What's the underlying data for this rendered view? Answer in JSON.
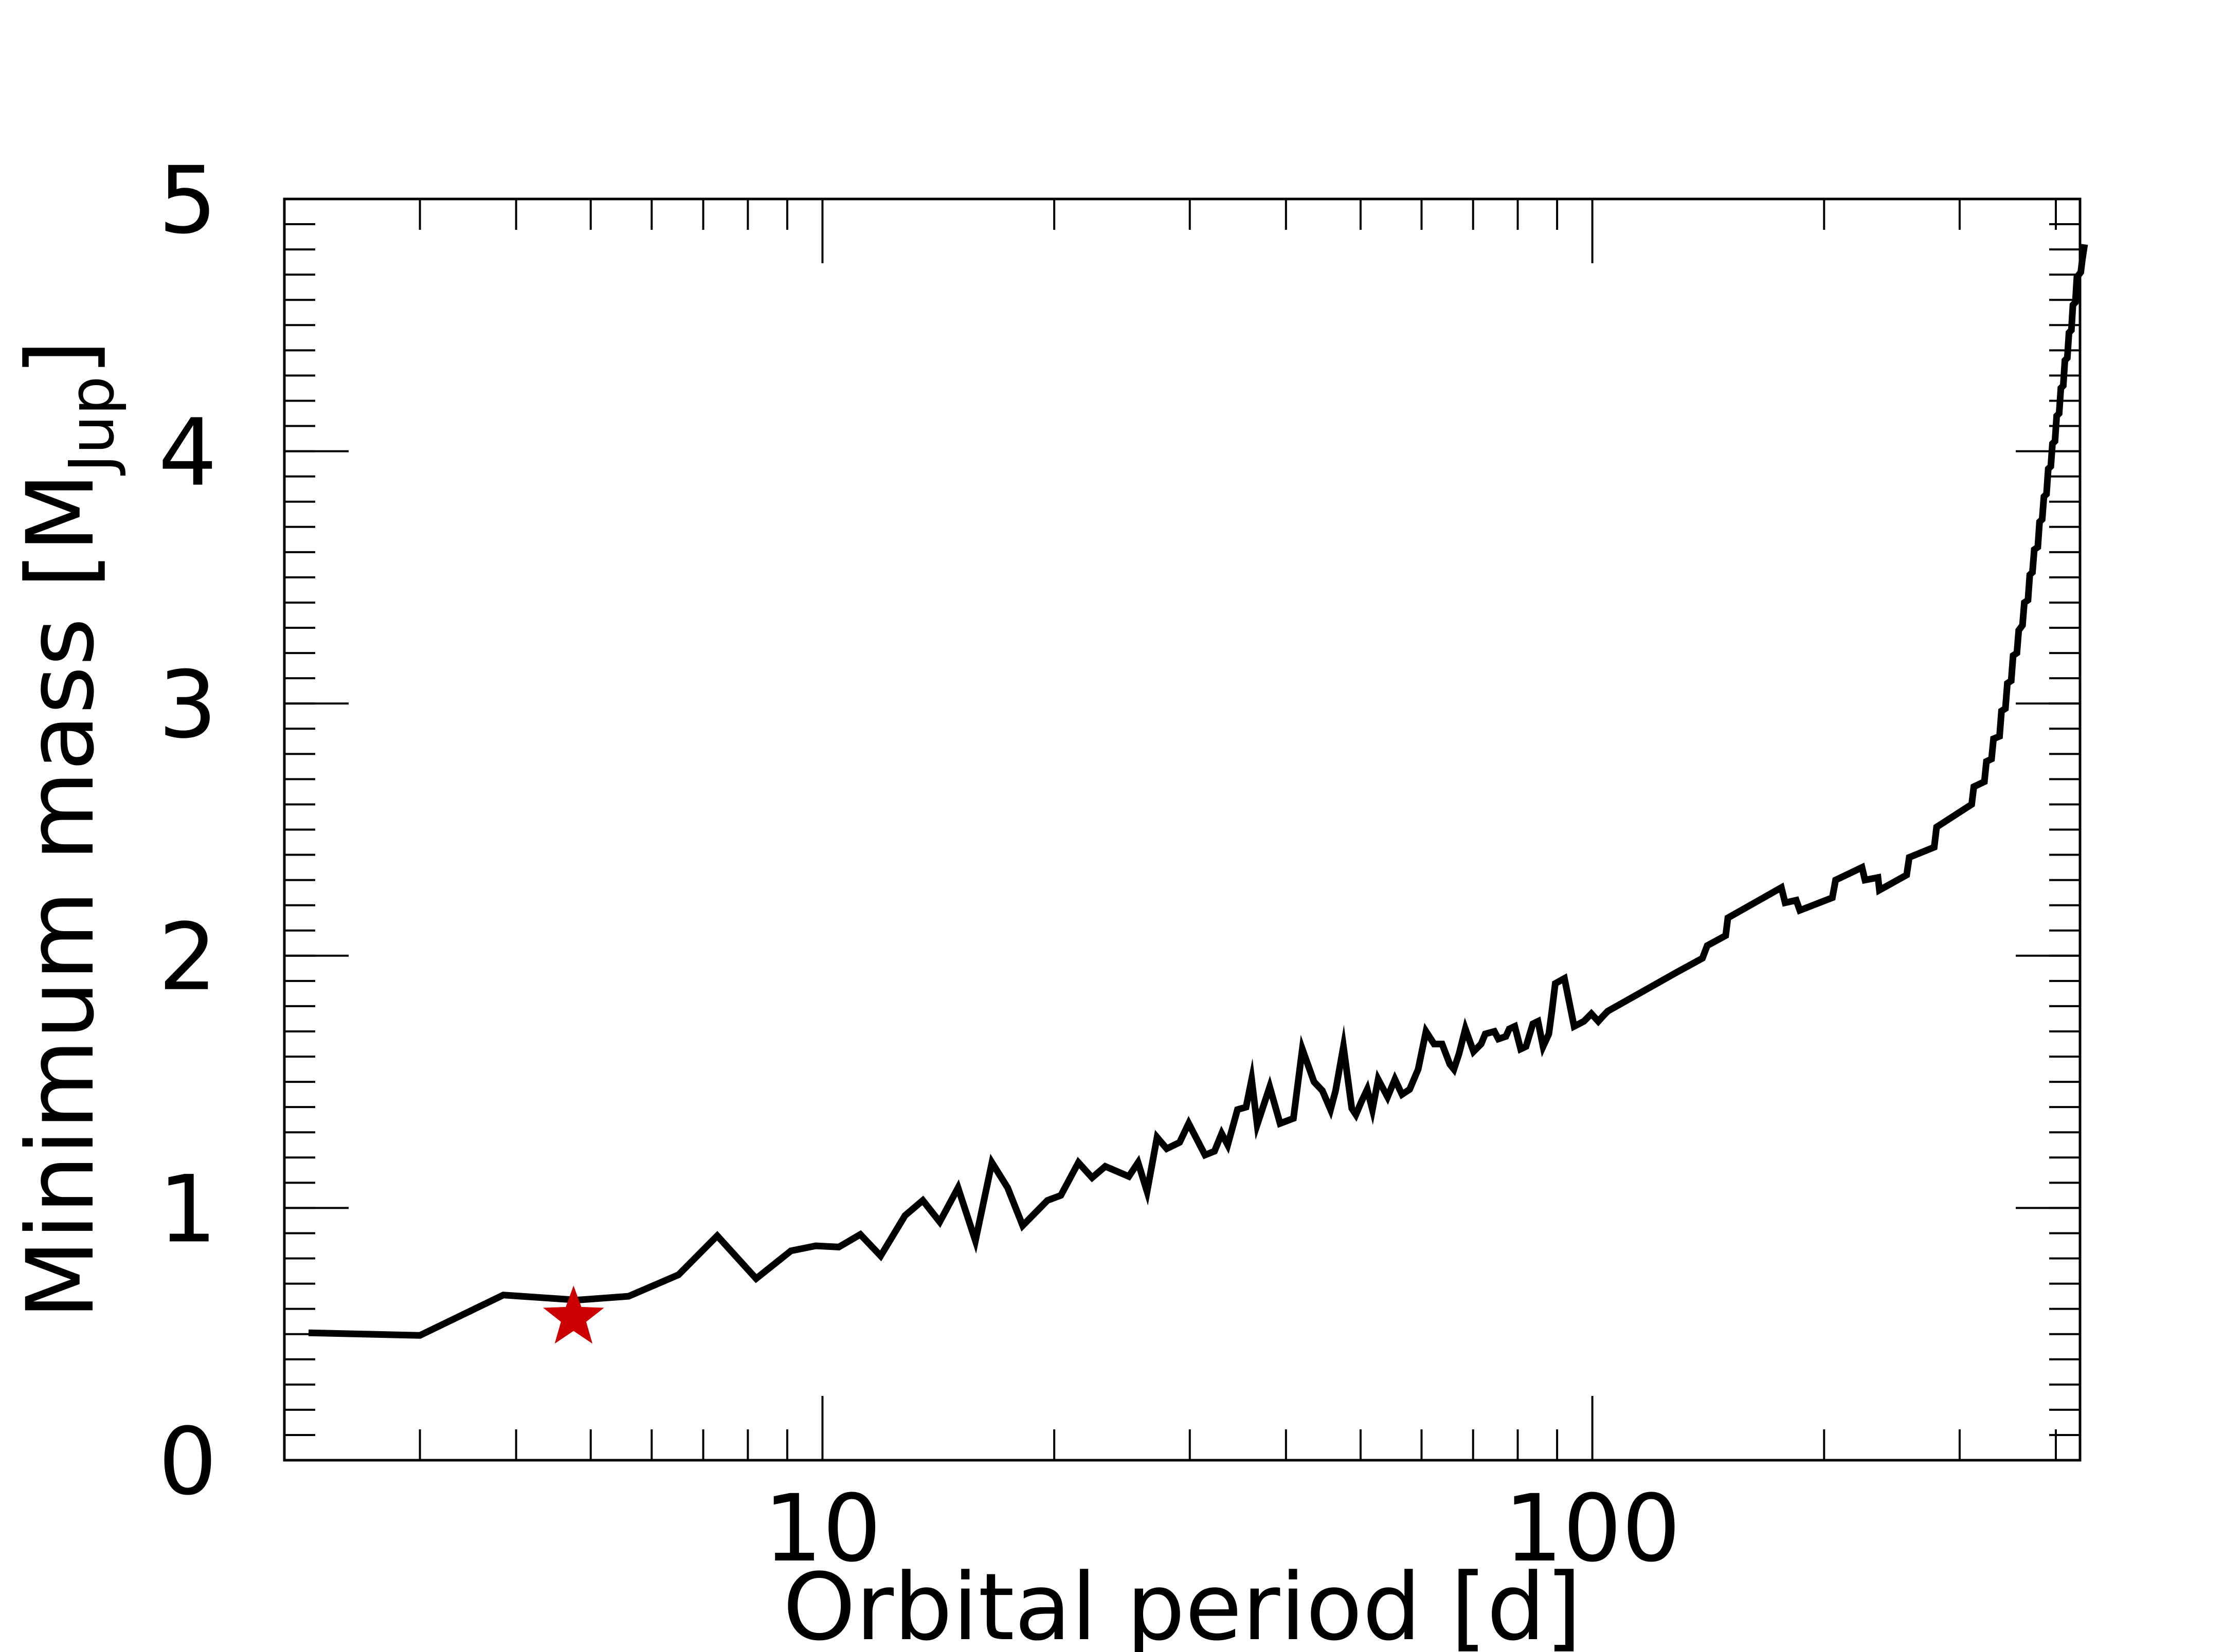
{
  "chart_data": {
    "type": "line",
    "title": "",
    "xlabel": "Orbital period [d]",
    "ylabel": {
      "prefix": "Minimum mass [M",
      "subscript": "Jup",
      "suffix": "]"
    },
    "xscale": "log",
    "yscale": "linear",
    "xlim": [
      2.0,
      430
    ],
    "ylim": [
      0,
      5
    ],
    "x_tick_labels": [
      {
        "value": 10,
        "label": "10"
      },
      {
        "value": 100,
        "label": "100"
      }
    ],
    "y_tick_labels": [
      {
        "value": 0,
        "label": "0"
      },
      {
        "value": 1,
        "label": "1"
      },
      {
        "value": 2,
        "label": "2"
      },
      {
        "value": 3,
        "label": "3"
      },
      {
        "value": 4,
        "label": "4"
      },
      {
        "value": 5,
        "label": "5"
      }
    ],
    "x_minor_ticks": [
      3,
      4,
      5,
      6,
      7,
      8,
      9,
      20,
      30,
      40,
      50,
      60,
      70,
      80,
      90,
      200,
      300,
      400
    ],
    "y_minor_step": 0.1,
    "grid": false,
    "colors": {
      "line": "#000000",
      "marker": "#cc0000"
    },
    "series": [
      {
        "color": "#000000",
        "points": [
          [
            2.15,
            0.505
          ],
          [
            3.0,
            0.495
          ],
          [
            3.85,
            0.655
          ],
          [
            4.8,
            0.635
          ],
          [
            5.6,
            0.65
          ],
          [
            6.5,
            0.735
          ],
          [
            7.3,
            0.89
          ],
          [
            8.2,
            0.72
          ],
          [
            9.1,
            0.83
          ],
          [
            9.8,
            0.85
          ],
          [
            10.5,
            0.845
          ],
          [
            11.2,
            0.895
          ],
          [
            11.9,
            0.81
          ],
          [
            12.8,
            0.97
          ],
          [
            13.5,
            1.03
          ],
          [
            14.2,
            0.945
          ],
          [
            15.0,
            1.08
          ],
          [
            15.8,
            0.87
          ],
          [
            16.6,
            1.18
          ],
          [
            17.4,
            1.08
          ],
          [
            18.2,
            0.93
          ],
          [
            19.6,
            1.03
          ],
          [
            20.4,
            1.05
          ],
          [
            21.5,
            1.18
          ],
          [
            22.4,
            1.12
          ],
          [
            23.3,
            1.165
          ],
          [
            25.0,
            1.125
          ],
          [
            25.7,
            1.18
          ],
          [
            26.4,
            1.065
          ],
          [
            27.2,
            1.28
          ],
          [
            28.0,
            1.235
          ],
          [
            29.1,
            1.26
          ],
          [
            29.9,
            1.335
          ],
          [
            31.4,
            1.21
          ],
          [
            32.3,
            1.225
          ],
          [
            33.0,
            1.295
          ],
          [
            33.6,
            1.25
          ],
          [
            34.6,
            1.39
          ],
          [
            35.5,
            1.4
          ],
          [
            36.1,
            1.51
          ],
          [
            36.7,
            1.33
          ],
          [
            38.1,
            1.48
          ],
          [
            39.3,
            1.335
          ],
          [
            40.9,
            1.355
          ],
          [
            42.0,
            1.63
          ],
          [
            43.5,
            1.5
          ],
          [
            44.6,
            1.465
          ],
          [
            45.7,
            1.39
          ],
          [
            46.4,
            1.465
          ],
          [
            47.5,
            1.64
          ],
          [
            48.7,
            1.395
          ],
          [
            49.3,
            1.37
          ],
          [
            50.1,
            1.42
          ],
          [
            51.0,
            1.47
          ],
          [
            51.8,
            1.39
          ],
          [
            52.7,
            1.51
          ],
          [
            54.2,
            1.44
          ],
          [
            55.4,
            1.51
          ],
          [
            56.6,
            1.45
          ],
          [
            57.9,
            1.47
          ],
          [
            59.4,
            1.55
          ],
          [
            60.8,
            1.7
          ],
          [
            62.3,
            1.65
          ],
          [
            63.8,
            1.65
          ],
          [
            65.3,
            1.57
          ],
          [
            66.1,
            1.55
          ],
          [
            67.1,
            1.61
          ],
          [
            68.4,
            1.71
          ],
          [
            70.1,
            1.62
          ],
          [
            71.7,
            1.65
          ],
          [
            72.6,
            1.69
          ],
          [
            74.6,
            1.7
          ],
          [
            75.5,
            1.67
          ],
          [
            77.2,
            1.68
          ],
          [
            78.0,
            1.71
          ],
          [
            79.3,
            1.72
          ],
          [
            80.7,
            1.63
          ],
          [
            82.0,
            1.64
          ],
          [
            83.7,
            1.73
          ],
          [
            85.0,
            1.74
          ],
          [
            86.3,
            1.64
          ],
          [
            87.8,
            1.69
          ],
          [
            88.6,
            1.78
          ],
          [
            89.5,
            1.89
          ],
          [
            92.0,
            1.91
          ],
          [
            94.7,
            1.72
          ],
          [
            97.5,
            1.74
          ],
          [
            99.7,
            1.77
          ],
          [
            101.8,
            1.74
          ],
          [
            103.2,
            1.76
          ],
          [
            104.7,
            1.78
          ],
          [
            128.0,
            1.93
          ],
          [
            139.0,
            1.99
          ],
          [
            141.0,
            2.04
          ],
          [
            149.0,
            2.08
          ],
          [
            150.0,
            2.15
          ],
          [
            176.0,
            2.27
          ],
          [
            178.0,
            2.21
          ],
          [
            184.0,
            2.22
          ],
          [
            186.0,
            2.18
          ],
          [
            205.0,
            2.23
          ],
          [
            207.0,
            2.3
          ],
          [
            224.0,
            2.35
          ],
          [
            226.0,
            2.3
          ],
          [
            235.0,
            2.31
          ],
          [
            236.0,
            2.26
          ],
          [
            256.0,
            2.32
          ],
          [
            258.0,
            2.39
          ],
          [
            278.0,
            2.43
          ],
          [
            280.0,
            2.51
          ],
          [
            311.0,
            2.6
          ],
          [
            313.0,
            2.67
          ],
          [
            323.0,
            2.69
          ],
          [
            325.0,
            2.77
          ],
          [
            330.0,
            2.78
          ],
          [
            332.0,
            2.86
          ],
          [
            338.0,
            2.87
          ],
          [
            340.0,
            2.97
          ],
          [
            344.0,
            2.98
          ],
          [
            346.0,
            3.08
          ],
          [
            350.0,
            3.09
          ],
          [
            352.0,
            3.19
          ],
          [
            356.0,
            3.2
          ],
          [
            358.0,
            3.29
          ],
          [
            362.0,
            3.31
          ],
          [
            364.0,
            3.4
          ],
          [
            368.0,
            3.41
          ],
          [
            370.0,
            3.51
          ],
          [
            373.0,
            3.52
          ],
          [
            375.0,
            3.61
          ],
          [
            379.0,
            3.62
          ],
          [
            381.0,
            3.72
          ],
          [
            384.0,
            3.73
          ],
          [
            386.0,
            3.82
          ],
          [
            389.0,
            3.83
          ],
          [
            391.0,
            3.93
          ],
          [
            394.0,
            3.94
          ],
          [
            396.0,
            4.03
          ],
          [
            399.0,
            4.04
          ],
          [
            401.0,
            4.14
          ],
          [
            404.0,
            4.15
          ],
          [
            406.0,
            4.25
          ],
          [
            409.0,
            4.26
          ],
          [
            411.0,
            4.36
          ],
          [
            414.0,
            4.37
          ],
          [
            416.0,
            4.47
          ],
          [
            419.0,
            4.48
          ],
          [
            421.0,
            4.58
          ],
          [
            424.0,
            4.59
          ],
          [
            426.0,
            4.69
          ],
          [
            431.0,
            4.71
          ],
          [
            433.0,
            4.76
          ],
          [
            436.0,
            4.82
          ]
        ]
      }
    ],
    "markers": [
      {
        "shape": "star",
        "color": "#cc0000",
        "x": 4.75,
        "y": 0.565
      }
    ]
  }
}
